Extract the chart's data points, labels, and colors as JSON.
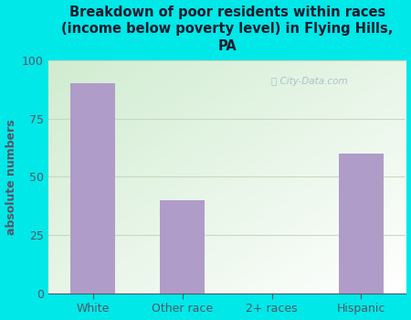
{
  "categories": [
    "White",
    "Other race",
    "2+ races",
    "Hispanic"
  ],
  "values": [
    90,
    40,
    0,
    60
  ],
  "bar_color": "#b09cc8",
  "title": "Breakdown of poor residents within races\n(income below poverty level) in Flying Hills,\nPA",
  "ylabel": "absolute numbers",
  "ylim": [
    0,
    100
  ],
  "yticks": [
    0,
    25,
    50,
    75,
    100
  ],
  "bg_color": "#00e8e8",
  "title_color": "#1a1a2e",
  "ylabel_color": "#555566",
  "tick_color": "#555566",
  "grid_color": "#c8d8c0",
  "watermark": "City-Data.com",
  "watermark_color": "#a0b8c8",
  "plot_bg_colors": [
    "#d0ecd0",
    "#f0f8f0",
    "#f8f8f8",
    "#ffffff"
  ],
  "bar_width": 0.5
}
